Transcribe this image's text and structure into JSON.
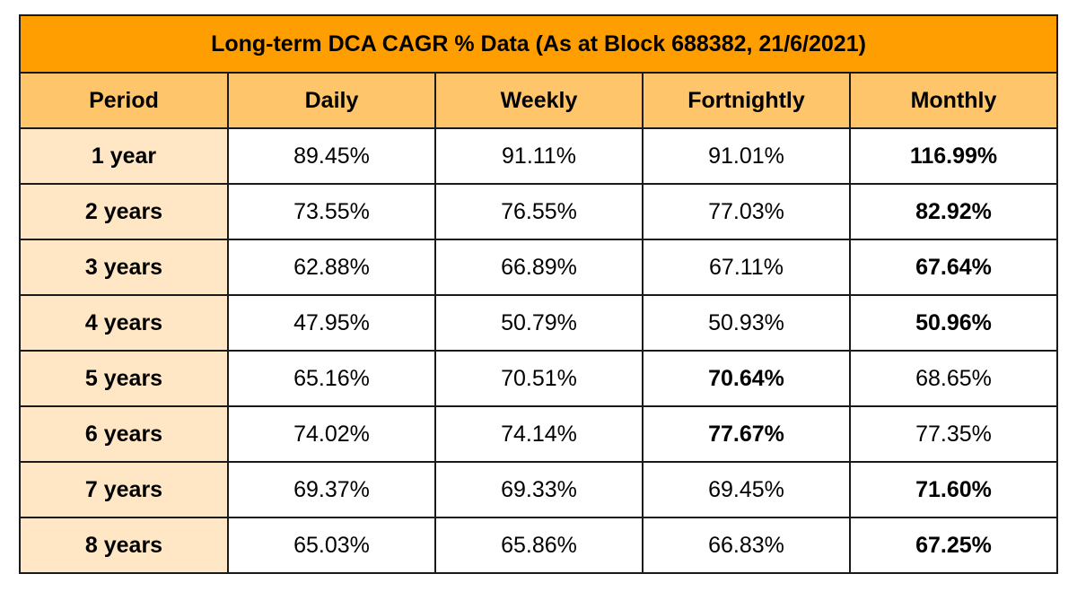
{
  "title": "Long-term DCA CAGR % Data (As at Block 688382, 21/6/2021)",
  "columns": [
    "Period",
    "Daily",
    "Weekly",
    "Fortnightly",
    "Monthly"
  ],
  "rows": [
    {
      "period": "1 year",
      "values": [
        "89.45%",
        "91.11%",
        "91.01%",
        "116.99%"
      ],
      "best_index": 3
    },
    {
      "period": "2 years",
      "values": [
        "73.55%",
        "76.55%",
        "77.03%",
        "82.92%"
      ],
      "best_index": 3
    },
    {
      "period": "3 years",
      "values": [
        "62.88%",
        "66.89%",
        "67.11%",
        "67.64%"
      ],
      "best_index": 3
    },
    {
      "period": "4 years",
      "values": [
        "47.95%",
        "50.79%",
        "50.93%",
        "50.96%"
      ],
      "best_index": 3
    },
    {
      "period": "5 years",
      "values": [
        "65.16%",
        "70.51%",
        "70.64%",
        "68.65%"
      ],
      "best_index": 2
    },
    {
      "period": "6 years",
      "values": [
        "74.02%",
        "74.14%",
        "77.67%",
        "77.35%"
      ],
      "best_index": 2
    },
    {
      "period": "7 years",
      "values": [
        "69.37%",
        "69.33%",
        "69.45%",
        "71.60%"
      ],
      "best_index": 3
    },
    {
      "period": "8 years",
      "values": [
        "65.03%",
        "65.86%",
        "66.83%",
        "67.25%"
      ],
      "best_index": 3
    }
  ],
  "colors": {
    "title_bg": "#ff9e00",
    "header_bg": "#ffc56a",
    "period_bg": "#ffe6c4",
    "border": "#1a1a1a"
  }
}
